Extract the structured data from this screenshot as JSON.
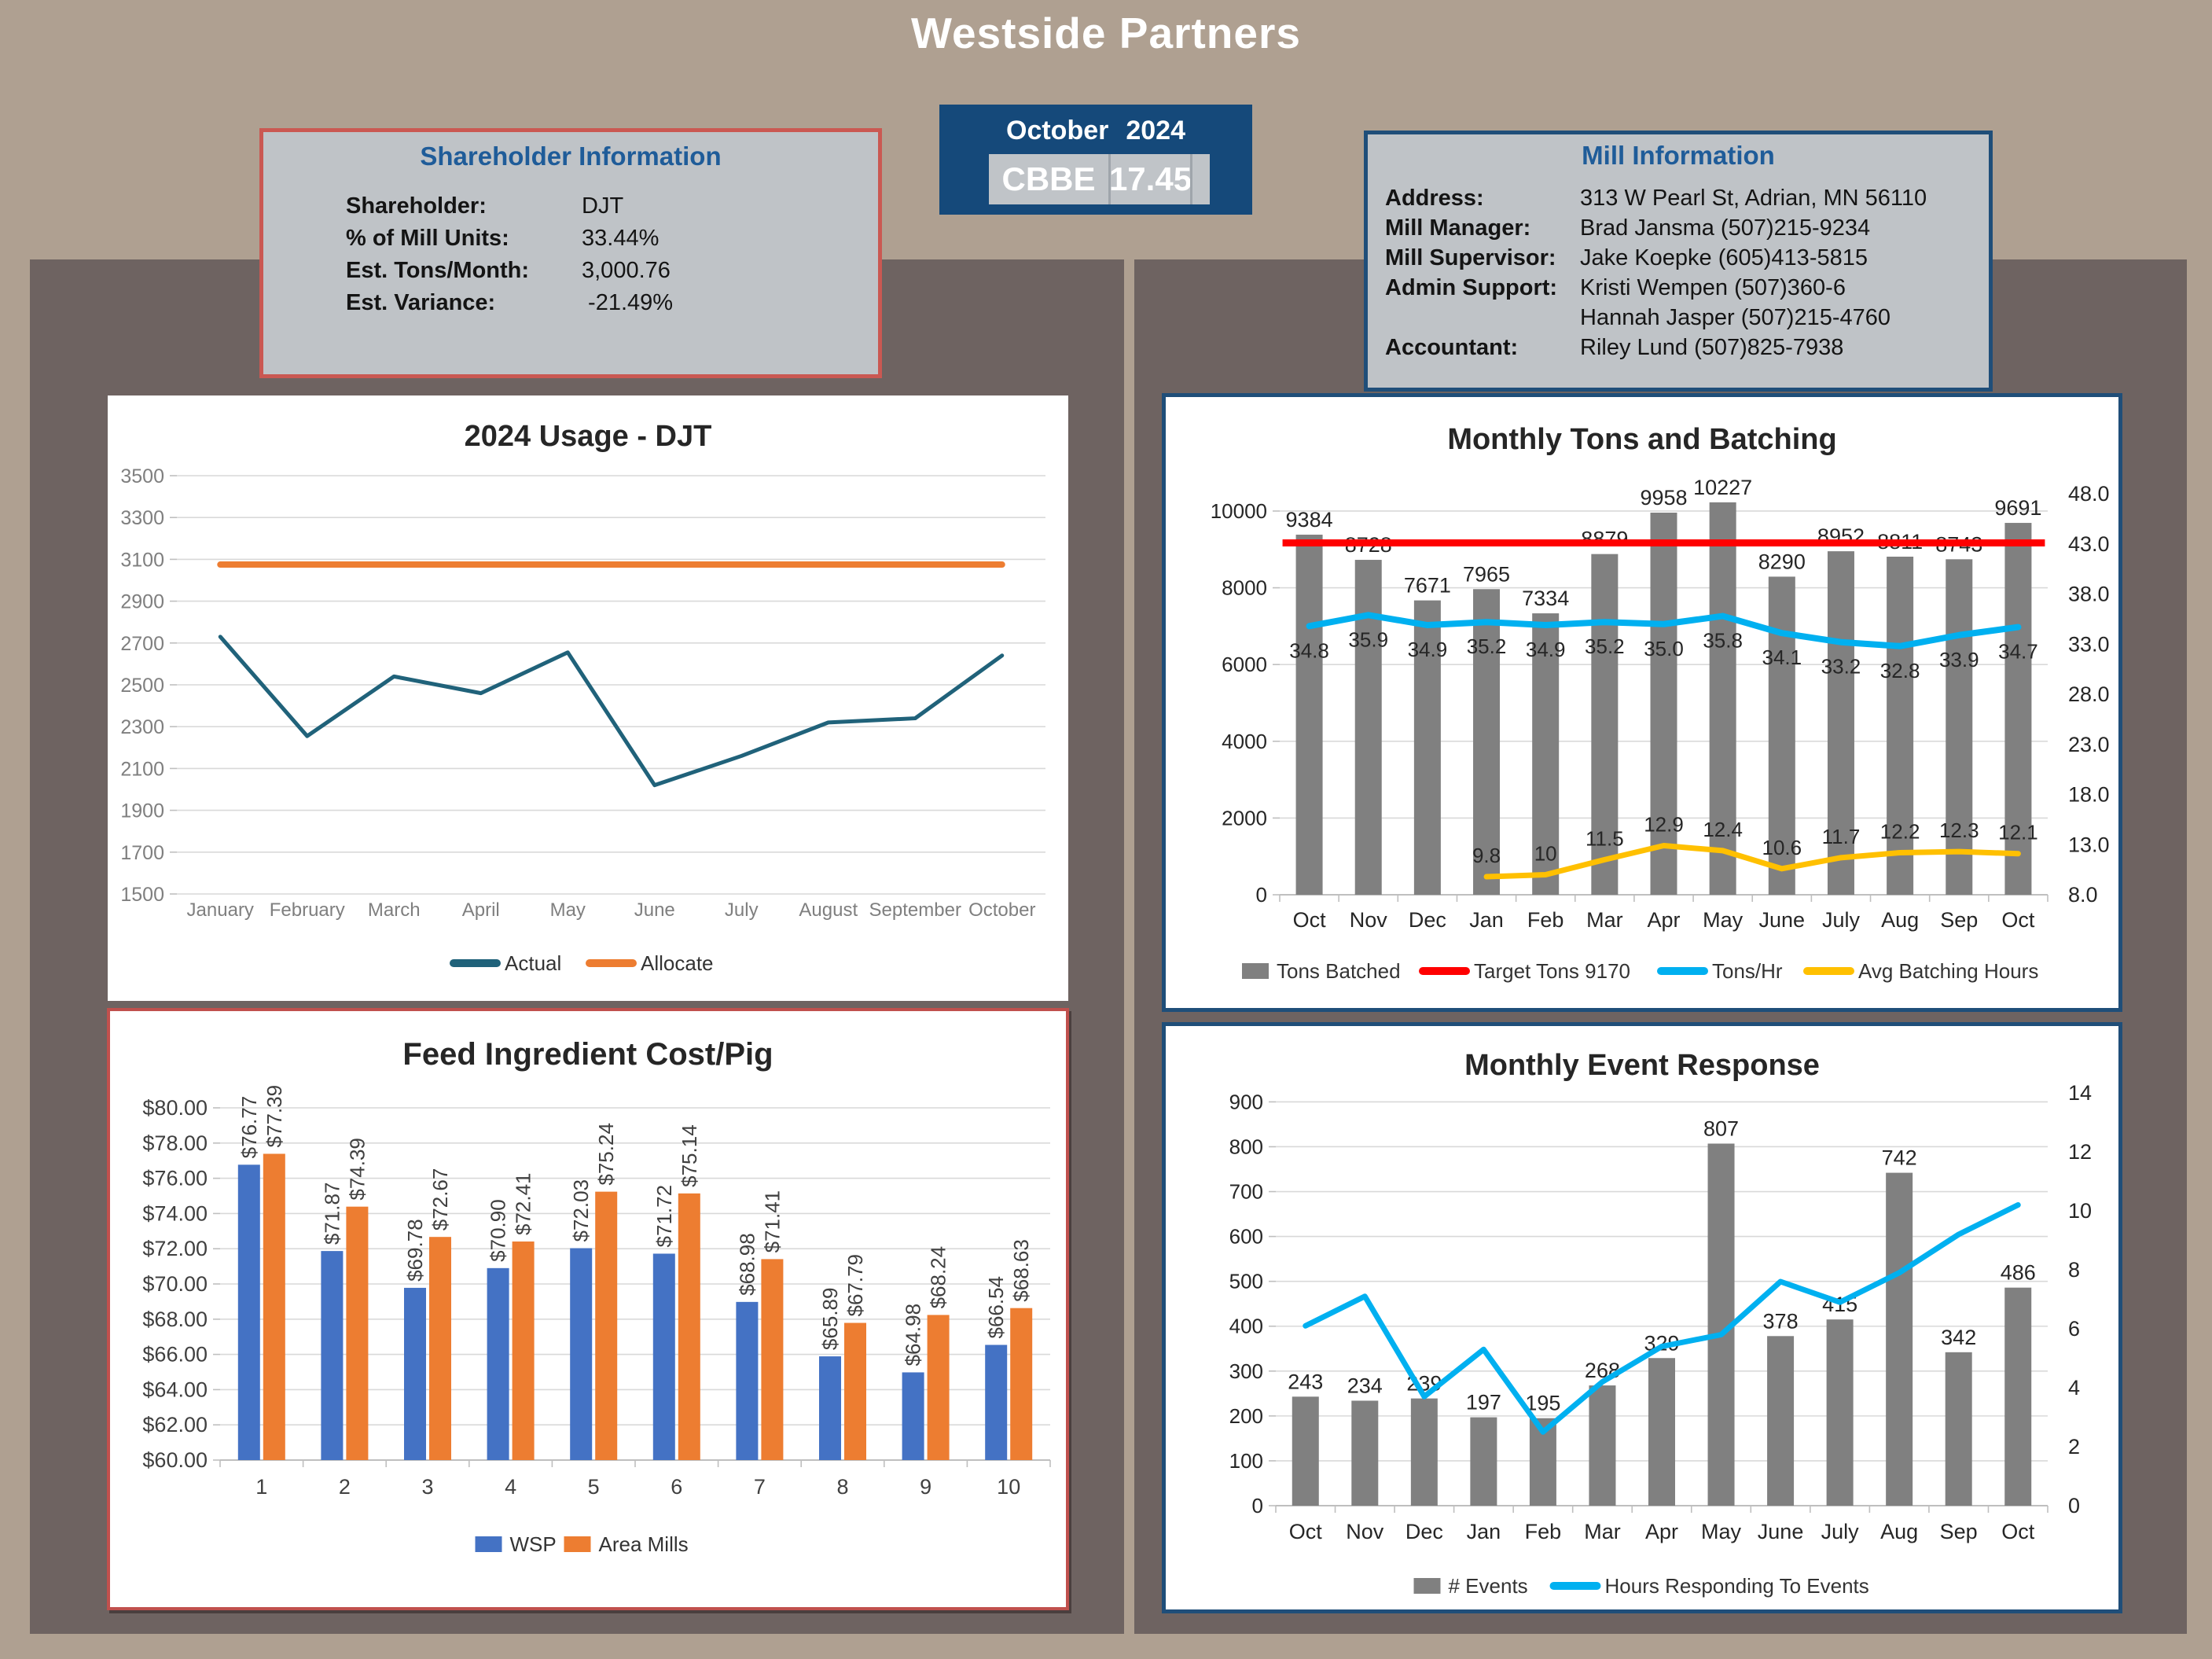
{
  "page": {
    "title": "Westside Partners",
    "colors": {
      "background": "#AFA091",
      "panel": "#6E6361",
      "card_gray": "#BFC3C7",
      "dark_blue": "#1F4E79",
      "header_blue": "#1F5C99",
      "red_border": "#CA5852",
      "bar_gray": "#808080",
      "cyan": "#00B0F0",
      "gold": "#FFC000",
      "red": "#FF0000",
      "wsp_blue": "#4472C4",
      "orange": "#ED7D31",
      "teal": "#20627A"
    }
  },
  "shareholder_info": {
    "title": "Shareholder Information",
    "rows": [
      {
        "label": "Shareholder:",
        "value": "DJT"
      },
      {
        "label": "% of Mill Units:",
        "value": "33.44%"
      },
      {
        "label": "Est. Tons/Month:",
        "value": "3,000.76"
      },
      {
        "label": "Est. Variance:",
        "value": " -21.49%"
      }
    ]
  },
  "period_box": {
    "month": "October",
    "year": "2024",
    "code": "CBBE",
    "value": "17.45"
  },
  "mill_info": {
    "title": "Mill Information",
    "rows": [
      {
        "label": "Address:",
        "value": "313 W Pearl St, Adrian, MN 56110"
      },
      {
        "label": "Mill Manager:",
        "value": "Brad Jansma (507)215-9234"
      },
      {
        "label": "Mill Supervisor:",
        "value": "Jake Koepke (605)413-5815"
      },
      {
        "label": "Admin Support:",
        "value": "Kristi Wempen (507)360-6"
      },
      {
        "label": "",
        "value": "Hannah Jasper (507)215-4760"
      },
      {
        "label": "Accountant:",
        "value": "Riley Lund (507)825-7938"
      }
    ]
  },
  "chart_data": [
    {
      "id": "usage",
      "type": "line",
      "title": "2024 Usage - DJT",
      "categories": [
        "January",
        "February",
        "March",
        "April",
        "May",
        "June",
        "July",
        "August",
        "September",
        "October"
      ],
      "y_axis": {
        "min": 1500,
        "max": 3500,
        "step": 200,
        "format": "int"
      },
      "grid": true,
      "legend_position": "bottom",
      "series": [
        {
          "name": "Actual",
          "color": "#20627A",
          "width": 5,
          "values": [
            2730,
            2255,
            2540,
            2460,
            2655,
            2020,
            2160,
            2320,
            2340,
            2640
          ]
        },
        {
          "name": "Allocate",
          "color": "#ED7D31",
          "width": 8,
          "values": [
            3075,
            3075,
            3075,
            3075,
            3075,
            3075,
            3075,
            3075,
            3075,
            3075
          ]
        }
      ],
      "legend": [
        {
          "swatch": "line",
          "color": "#20627A",
          "label": "Actual"
        },
        {
          "swatch": "line",
          "color": "#ED7D31",
          "label": "Allocate"
        }
      ]
    },
    {
      "id": "tons",
      "type": "combo",
      "title": "Monthly Tons and Batching",
      "categories": [
        "Oct",
        "Nov",
        "Dec",
        "Jan",
        "Feb",
        "Mar",
        "Apr",
        "May",
        "June",
        "July",
        "Aug",
        "Sep",
        "Oct"
      ],
      "left_axis": {
        "min": 0,
        "max": 10450,
        "ticks": [
          0,
          2000,
          4000,
          6000,
          8000,
          10000
        ],
        "format": "int"
      },
      "right_axis": {
        "min": 8,
        "max": 48,
        "step": 5,
        "format": "dec1"
      },
      "grid": true,
      "legend_position": "bottom",
      "bars": {
        "name": "Tons Batched",
        "color": "#808080",
        "values": [
          9384,
          8728,
          7671,
          7965,
          7334,
          8879,
          9958,
          10227,
          8290,
          8952,
          8811,
          8743,
          9691
        ],
        "labels": [
          "9384",
          "8728",
          "7671",
          "7965",
          "7334",
          "8879",
          "9958",
          "10227",
          "8290",
          "8952",
          "8811",
          "8743",
          "9691"
        ]
      },
      "target": {
        "name": "Target Tons 9170",
        "color": "#FF0000",
        "value": 9170
      },
      "lines": [
        {
          "name": "Tons/Hr",
          "color": "#00B0F0",
          "axis": "right",
          "width": 8,
          "label_side": "below",
          "values": [
            34.8,
            35.9,
            34.9,
            35.2,
            34.9,
            35.2,
            35.0,
            35.8,
            34.1,
            33.2,
            32.8,
            33.9,
            34.7
          ],
          "labels": [
            "34.8",
            "35.9",
            "34.9",
            "35.2",
            "34.9",
            "35.2",
            "35.0",
            "35.8",
            "34.1",
            "33.2",
            "32.8",
            "33.9",
            "34.7"
          ]
        },
        {
          "name": "Avg Batching Hours",
          "color": "#FFC000",
          "axis": "right",
          "width": 7,
          "label_side": "above",
          "values": [
            null,
            null,
            null,
            9.8,
            10,
            11.5,
            12.9,
            12.4,
            10.6,
            11.7,
            12.2,
            12.3,
            12.1
          ],
          "labels": [
            "",
            "",
            "",
            "9.8",
            "10",
            "11.5",
            "12.9",
            "12.4",
            "10.6",
            "11.7",
            "12.2",
            "12.3",
            "12.1"
          ]
        }
      ],
      "legend": [
        {
          "swatch": "rect",
          "color": "#808080",
          "label": "Tons Batched"
        },
        {
          "swatch": "line",
          "color": "#FF0000",
          "label": "Target Tons 9170"
        },
        {
          "swatch": "line",
          "color": "#00B0F0",
          "label": "Tons/Hr"
        },
        {
          "swatch": "line",
          "color": "#FFC000",
          "label": "Avg Batching Hours"
        }
      ]
    },
    {
      "id": "feed",
      "type": "grouped_bar",
      "title": "Feed Ingredient Cost/Pig",
      "categories": [
        "1",
        "2",
        "3",
        "4",
        "5",
        "6",
        "7",
        "8",
        "9",
        "10"
      ],
      "y_axis": {
        "min": 60,
        "max": 80,
        "step": 2,
        "format": "usd"
      },
      "grid": true,
      "legend_position": "bottom",
      "series": [
        {
          "name": "WSP",
          "color": "#4472C4",
          "values": [
            76.77,
            71.87,
            69.78,
            70.9,
            72.03,
            71.72,
            68.98,
            65.89,
            64.98,
            66.54
          ],
          "labels": [
            "$76.77",
            "$71.87",
            "$69.78",
            "$70.90",
            "$72.03",
            "$71.72",
            "$68.98",
            "$65.89",
            "$64.98",
            "$66.54"
          ]
        },
        {
          "name": "Area Mills",
          "color": "#ED7D31",
          "values": [
            77.39,
            74.39,
            72.67,
            72.41,
            75.24,
            75.14,
            71.41,
            67.79,
            68.24,
            68.63
          ],
          "labels": [
            "$77.39",
            "$74.39",
            "$72.67",
            "$72.41",
            "$75.24",
            "$75.14",
            "$71.41",
            "$67.79",
            "$68.24",
            "$68.63"
          ]
        }
      ],
      "legend": [
        {
          "swatch": "rect",
          "color": "#4472C4",
          "label": "WSP"
        },
        {
          "swatch": "rect",
          "color": "#ED7D31",
          "label": "Area Mills"
        }
      ]
    },
    {
      "id": "events",
      "type": "combo",
      "title": "Monthly Event Response",
      "categories": [
        "Oct",
        "Nov",
        "Dec",
        "Jan",
        "Feb",
        "Mar",
        "Apr",
        "May",
        "June",
        "July",
        "Aug",
        "Sep",
        "Oct"
      ],
      "left_axis": {
        "min": 0,
        "max": 920,
        "ticks": [
          0,
          100,
          200,
          300,
          400,
          500,
          600,
          700,
          800,
          900
        ],
        "format": "int"
      },
      "right_axis": {
        "min": 0,
        "max": 14,
        "step": 2,
        "format": "int"
      },
      "grid": true,
      "legend_position": "bottom",
      "bars": {
        "name": "# Events",
        "color": "#808080",
        "values": [
          243,
          234,
          239,
          197,
          195,
          268,
          329,
          807,
          378,
          415,
          742,
          342,
          486
        ],
        "labels": [
          "243",
          "234",
          "239",
          "197",
          "195",
          "268",
          "329",
          "807",
          "378",
          "415",
          "742",
          "342",
          "486"
        ]
      },
      "lines": [
        {
          "name": "Hours Responding To Events",
          "color": "#00B0F0",
          "axis": "right",
          "width": 7,
          "values": [
            6.1,
            7.1,
            3.7,
            5.3,
            2.5,
            4.2,
            5.4,
            5.8,
            7.6,
            6.9,
            7.9,
            9.2,
            10.2
          ],
          "labels": null
        }
      ],
      "legend": [
        {
          "swatch": "rect",
          "color": "#808080",
          "label": "# Events"
        },
        {
          "swatch": "line",
          "color": "#00B0F0",
          "label": "Hours Responding To Events"
        }
      ]
    }
  ]
}
